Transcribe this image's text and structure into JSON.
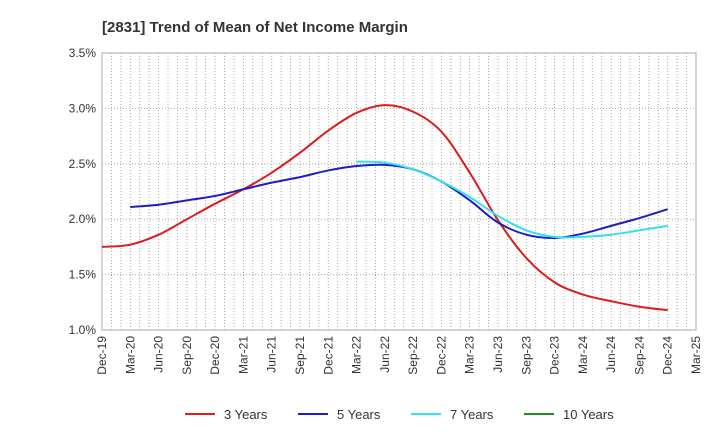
{
  "chart_data": {
    "type": "line",
    "title": "[2831]  Trend of Mean of Net Income Margin",
    "xlabel": "",
    "ylabel": "",
    "x": [
      "Dec-19",
      "Mar-20",
      "Jun-20",
      "Sep-20",
      "Dec-20",
      "Mar-21",
      "Jun-21",
      "Sep-21",
      "Dec-21",
      "Mar-22",
      "Jun-22",
      "Sep-22",
      "Dec-22",
      "Mar-23",
      "Jun-23",
      "Sep-23",
      "Dec-23",
      "Mar-24",
      "Jun-24",
      "Sep-24",
      "Dec-24",
      "Mar-25"
    ],
    "y_ticks": [
      "1.0%",
      "1.5%",
      "2.0%",
      "2.5%",
      "3.0%",
      "3.5%"
    ],
    "ylim": [
      1.0,
      3.5
    ],
    "grid": true,
    "legend_position": "bottom",
    "series": [
      {
        "name": "3 Years",
        "color": "#dd1c1c",
        "values": [
          1.75,
          1.77,
          1.86,
          2.0,
          2.14,
          2.27,
          2.42,
          2.6,
          2.8,
          2.96,
          3.03,
          2.97,
          2.79,
          2.42,
          1.99,
          1.65,
          1.43,
          1.32,
          1.26,
          1.21,
          1.18,
          null
        ]
      },
      {
        "name": "5 Years",
        "color": "#1c1cc8",
        "values": [
          null,
          2.11,
          2.13,
          2.17,
          2.21,
          2.27,
          2.33,
          2.38,
          2.44,
          2.48,
          2.49,
          2.45,
          2.34,
          2.17,
          1.97,
          1.86,
          1.83,
          1.87,
          1.94,
          2.01,
          2.09,
          null
        ]
      },
      {
        "name": "7 Years",
        "color": "#33e0f0",
        "values": [
          null,
          null,
          null,
          null,
          null,
          null,
          null,
          null,
          null,
          2.52,
          2.51,
          2.45,
          2.34,
          2.2,
          2.03,
          1.9,
          1.84,
          1.84,
          1.86,
          1.9,
          1.94,
          null
        ]
      },
      {
        "name": "10 Years",
        "color": "#228b22",
        "values": [
          null,
          null,
          null,
          null,
          null,
          null,
          null,
          null,
          null,
          null,
          null,
          null,
          null,
          null,
          null,
          null,
          null,
          null,
          null,
          null,
          null,
          null
        ]
      }
    ]
  }
}
